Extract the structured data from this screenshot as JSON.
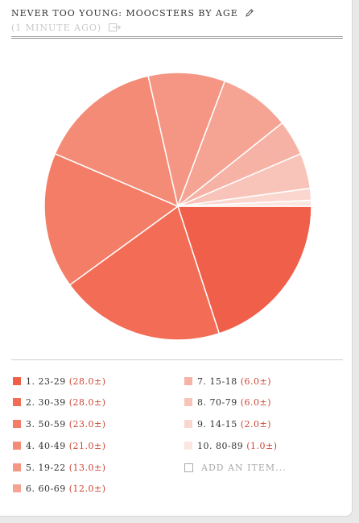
{
  "header": {
    "title": "NEVER TOO YOUNG: MOOCSTERS BY AGE",
    "subtitle": "(1 MINUTE AGO)"
  },
  "chart_data": {
    "type": "pie",
    "categories": [
      "23-29",
      "30-39",
      "50-59",
      "40-49",
      "19-22",
      "60-69",
      "15-18",
      "70-79",
      "14-15",
      "80-89"
    ],
    "values": [
      28,
      28,
      23,
      21,
      13,
      12,
      6,
      6,
      2,
      1
    ],
    "colors": [
      "#f05f49",
      "#f36c55",
      "#f37d67",
      "#f38b76",
      "#f59684",
      "#f5a494",
      "#f5b2a5",
      "#f8c4b9",
      "#fad6cf",
      "#fce6e2"
    ]
  },
  "legend": {
    "items": [
      {
        "label": "1. 23-29",
        "count": "(28.0±)"
      },
      {
        "label": "2. 30-39",
        "count": "(28.0±)"
      },
      {
        "label": "3. 50-59",
        "count": "(23.0±)"
      },
      {
        "label": "4. 40-49",
        "count": "(21.0±)"
      },
      {
        "label": "5. 19-22",
        "count": "(13.0±)"
      },
      {
        "label": "6. 60-69",
        "count": "(12.0±)"
      },
      {
        "label": "7. 15-18",
        "count": "(6.0±)"
      },
      {
        "label": "8. 70-79",
        "count": "(6.0±)"
      },
      {
        "label": "9. 14-15",
        "count": "(2.0±)"
      },
      {
        "label": "10. 80-89",
        "count": "(1.0±)"
      }
    ],
    "add_label": "ADD AN ITEM..."
  }
}
